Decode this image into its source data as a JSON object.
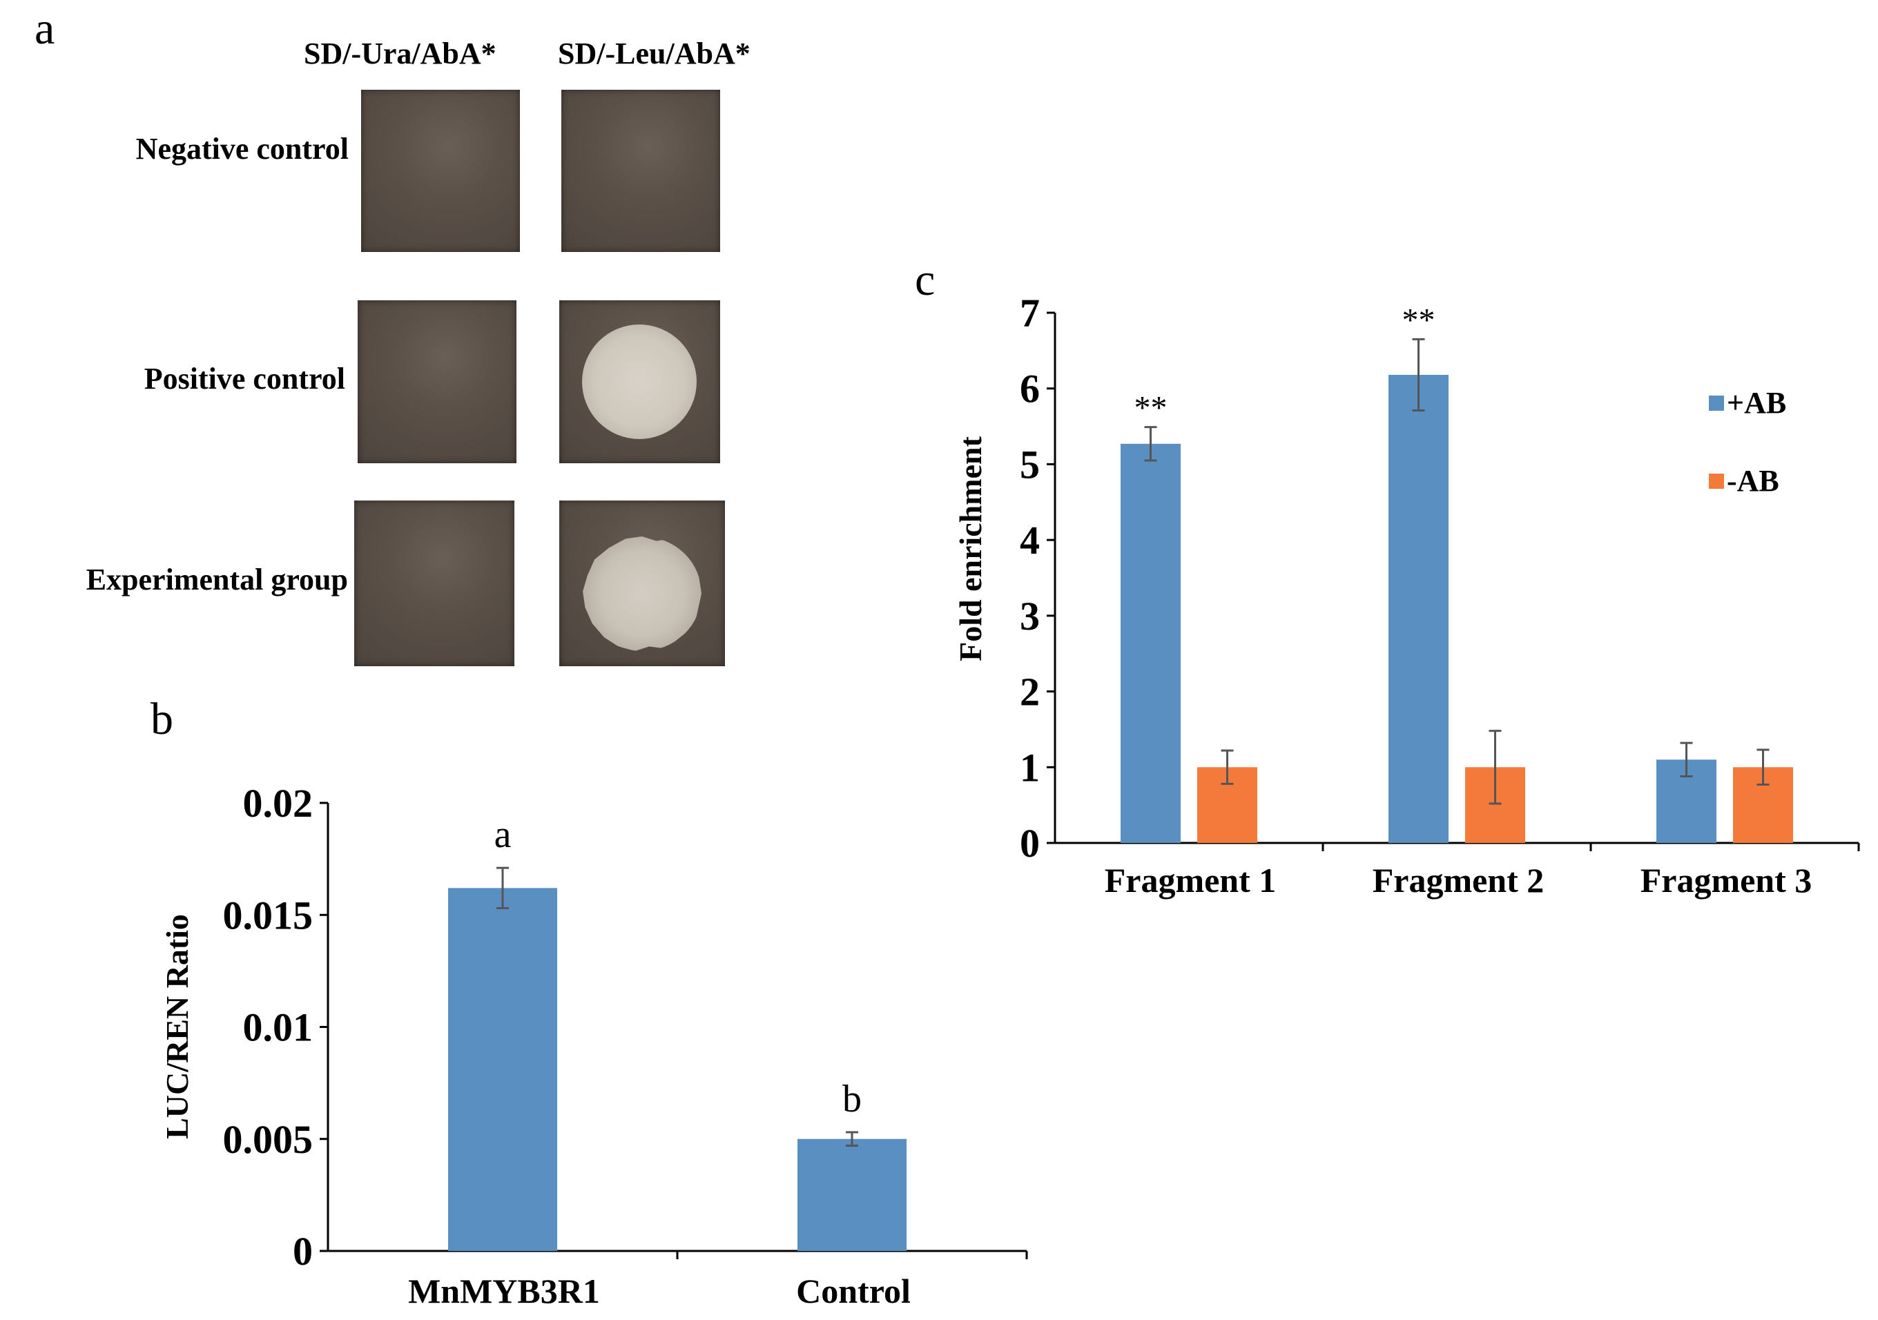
{
  "panel_a": {
    "letter": "a",
    "columns": [
      "SD/-Ura/AbA*",
      "SD/-Leu/AbA*"
    ],
    "rows": [
      {
        "label": "Negative control",
        "growth": [
          "none",
          "none"
        ]
      },
      {
        "label": "Positive control",
        "growth": [
          "none",
          "colony"
        ]
      },
      {
        "label": "Experimental group",
        "growth": [
          "none",
          "colony"
        ]
      }
    ]
  },
  "panel_b": {
    "letter": "b"
  },
  "panel_c": {
    "letter": "c"
  },
  "colors": {
    "blue": "#5a8fc2",
    "orange": "#f47a3c",
    "axis": "#000000",
    "errorbar": "#555555"
  },
  "chart_data": [
    {
      "type": "bar",
      "panel": "b",
      "categories": [
        "MnMYB3R1",
        "Control"
      ],
      "values": [
        0.0162,
        0.005
      ],
      "errors": [
        0.0009,
        0.0003
      ],
      "annotations": [
        "a",
        "b"
      ],
      "ylabel": "LUC/REN Ratio",
      "yticks": [
        "0",
        "0.005",
        "0.01",
        "0.015",
        "0.02"
      ],
      "ylim": [
        0,
        0.02
      ],
      "grid": false
    },
    {
      "type": "bar",
      "panel": "c",
      "categories": [
        "Fragment 1",
        "Fragment 2",
        "Fragment 3"
      ],
      "series": [
        {
          "name": "+AB",
          "values": [
            5.27,
            6.18,
            1.1
          ],
          "errors": [
            0.22,
            0.47,
            0.22
          ],
          "annotations": [
            "**",
            "**",
            ""
          ]
        },
        {
          "name": "-AB",
          "values": [
            1.0,
            1.0,
            1.0
          ],
          "errors": [
            0.22,
            0.48,
            0.23
          ],
          "annotations": [
            "",
            "",
            ""
          ]
        }
      ],
      "ylabel": "Fold enrichment",
      "yticks": [
        "0",
        "1",
        "2",
        "3",
        "4",
        "5",
        "6",
        "7"
      ],
      "ylim": [
        0,
        7
      ],
      "legend_position": "top-right",
      "grid": false
    }
  ]
}
